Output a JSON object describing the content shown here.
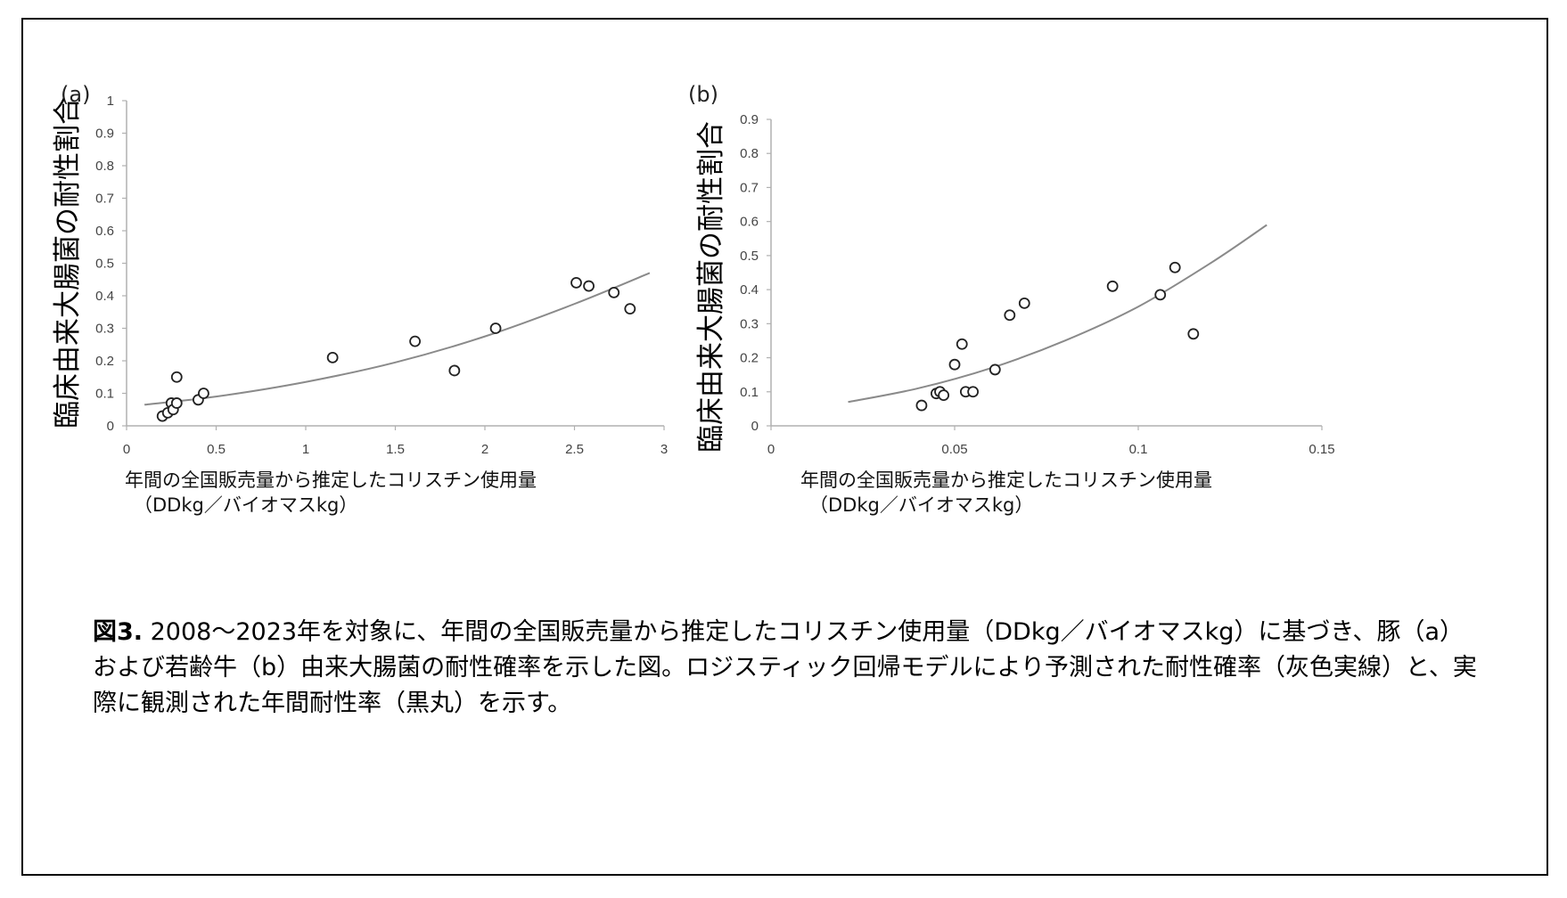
{
  "chart_data": [
    {
      "type": "scatter",
      "panel_label": "(a)",
      "ylabel": "臨床由来大腸菌の耐性割合",
      "xlabel_line1": "年間の全国販売量から推定したコリスチン使用量",
      "xlabel_line2": "（DDkg／バイオマスkg）",
      "xlim": [
        0,
        3
      ],
      "ylim": [
        0,
        1
      ],
      "xticks": [
        "0",
        "0.5",
        "1",
        "1.5",
        "2",
        "2.5",
        "3"
      ],
      "yticks": [
        "0",
        "0.1",
        "0.2",
        "0.3",
        "0.4",
        "0.5",
        "0.6",
        "0.7",
        "0.8",
        "0.9",
        "1"
      ],
      "grid": false,
      "points": [
        {
          "x": 0.2,
          "y": 0.03
        },
        {
          "x": 0.23,
          "y": 0.04
        },
        {
          "x": 0.25,
          "y": 0.07
        },
        {
          "x": 0.26,
          "y": 0.05
        },
        {
          "x": 0.28,
          "y": 0.07
        },
        {
          "x": 0.28,
          "y": 0.15
        },
        {
          "x": 0.4,
          "y": 0.08
        },
        {
          "x": 0.43,
          "y": 0.1
        },
        {
          "x": 1.15,
          "y": 0.21
        },
        {
          "x": 1.61,
          "y": 0.26
        },
        {
          "x": 1.83,
          "y": 0.17
        },
        {
          "x": 2.06,
          "y": 0.3
        },
        {
          "x": 2.51,
          "y": 0.44
        },
        {
          "x": 2.58,
          "y": 0.43
        },
        {
          "x": 2.72,
          "y": 0.41
        },
        {
          "x": 2.81,
          "y": 0.36
        }
      ],
      "fit_line": {
        "x": [
          0.1,
          0.5,
          1.0,
          1.5,
          2.0,
          2.5,
          2.92
        ],
        "y": [
          0.065,
          0.09,
          0.135,
          0.195,
          0.275,
          0.375,
          0.47
        ]
      },
      "colors": {
        "points": "#222222",
        "fit_line": "#8a8a8a",
        "axis": "#b0b0b0"
      }
    },
    {
      "type": "scatter",
      "panel_label": "(b)",
      "ylabel": "臨床由来大腸菌の耐性割合",
      "xlabel_line1": "年間の全国販売量から推定したコリスチン使用量",
      "xlabel_line2": "（DDkg／バイオマスkg）",
      "xlim": [
        0,
        0.15
      ],
      "ylim": [
        0,
        0.9
      ],
      "xticks": [
        "0",
        "0.05",
        "0.1",
        "0.15"
      ],
      "yticks": [
        "0",
        "0.1",
        "0.2",
        "0.3",
        "0.4",
        "0.5",
        "0.6",
        "0.7",
        "0.8",
        "0.9"
      ],
      "grid": false,
      "points": [
        {
          "x": 0.041,
          "y": 0.06
        },
        {
          "x": 0.045,
          "y": 0.095
        },
        {
          "x": 0.046,
          "y": 0.1
        },
        {
          "x": 0.047,
          "y": 0.09
        },
        {
          "x": 0.05,
          "y": 0.18
        },
        {
          "x": 0.052,
          "y": 0.24
        },
        {
          "x": 0.053,
          "y": 0.1
        },
        {
          "x": 0.055,
          "y": 0.1
        },
        {
          "x": 0.061,
          "y": 0.165
        },
        {
          "x": 0.065,
          "y": 0.325
        },
        {
          "x": 0.069,
          "y": 0.36
        },
        {
          "x": 0.093,
          "y": 0.41
        },
        {
          "x": 0.106,
          "y": 0.385
        },
        {
          "x": 0.11,
          "y": 0.465
        },
        {
          "x": 0.115,
          "y": 0.27
        }
      ],
      "fit_line": {
        "x": [
          0.021,
          0.04,
          0.06,
          0.08,
          0.1,
          0.12,
          0.135
        ],
        "y": [
          0.07,
          0.11,
          0.17,
          0.25,
          0.35,
          0.48,
          0.59
        ]
      },
      "colors": {
        "points": "#222222",
        "fit_line": "#8a8a8a",
        "axis": "#b0b0b0"
      }
    }
  ],
  "caption": {
    "label": "図3.",
    "text": " 2008～2023年を対象に、年間の全国販売量から推定したコリスチン使用量（DDkg／バイオマスkg）に基づき、豚（a）および若齢牛（b）由来大腸菌の耐性確率を示した図。ロジスティック回帰モデルにより予測された耐性確率（灰色実線）と、実際に観測された年間耐性率（黒丸）を示す。"
  }
}
